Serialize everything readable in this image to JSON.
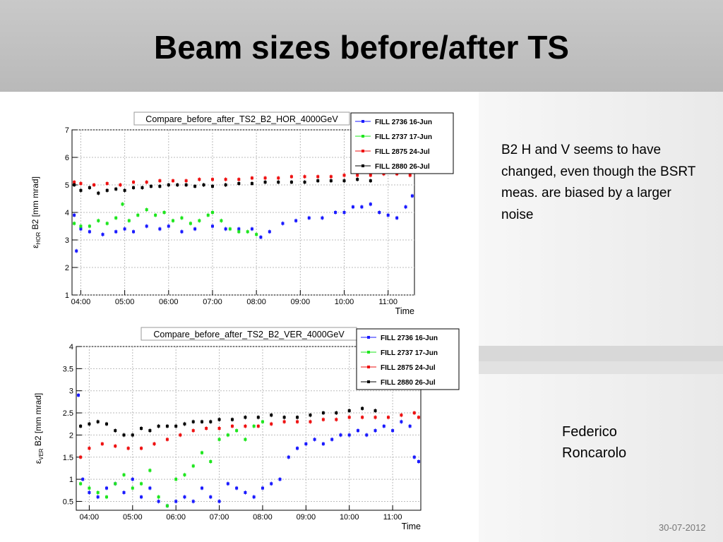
{
  "slide": {
    "title": "Beam sizes before/after TS",
    "note": "B2 H and V seems to have changed, even though the BSRT meas. are biased by a larger noise",
    "author_line1": "Federico",
    "author_line2": "Roncarolo",
    "date": "30-07-2012"
  },
  "colors": {
    "fill_2736": "#1a1aff",
    "fill_2737": "#1ee61e",
    "fill_2875": "#ee1111",
    "fill_2880": "#000000"
  },
  "chart_data": [
    {
      "type": "scatter",
      "title": "Compare_before_after_TS2_B2_HOR_4000GeV",
      "ylabel_main": "ε",
      "ylabel_sub": "HOR",
      "ylabel_rest": " B2 [mm mrad]",
      "xlabel": "Time",
      "xticks": [
        "04:00",
        "05:00",
        "06:00",
        "07:00",
        "08:00",
        "09:00",
        "10:00",
        "11:00"
      ],
      "yticks": [
        "1",
        "2",
        "3",
        "4",
        "5",
        "6",
        "7"
      ],
      "xlim_hours": [
        3.8,
        11.6
      ],
      "ylim": [
        1,
        7
      ],
      "legend_position": "top-right",
      "legend": [
        "FILL 2736 16-Jun",
        "FILL 2737 17-Jun",
        "FILL 2875 24-Jul",
        "FILL 2880 26-Jul"
      ],
      "series": [
        {
          "name": "FILL 2736 16-Jun",
          "color": "#1a1aff",
          "x": [
            3.85,
            3.9,
            4.0,
            4.2,
            4.5,
            4.8,
            5.0,
            5.2,
            5.5,
            5.8,
            6.0,
            6.3,
            6.6,
            7.0,
            7.3,
            7.6,
            7.9,
            8.1,
            8.3,
            8.6,
            8.9,
            9.2,
            9.5,
            9.8,
            10.0,
            10.2,
            10.4,
            10.6,
            10.8,
            11.0,
            11.2,
            11.4,
            11.55
          ],
          "y": [
            3.9,
            2.6,
            3.4,
            3.3,
            3.2,
            3.3,
            3.4,
            3.3,
            3.5,
            3.4,
            3.5,
            3.3,
            3.4,
            3.5,
            3.4,
            3.4,
            3.4,
            3.1,
            3.3,
            3.6,
            3.7,
            3.8,
            3.8,
            4.0,
            4.0,
            4.2,
            4.2,
            4.3,
            4.0,
            3.9,
            3.8,
            4.2,
            4.6
          ]
        },
        {
          "name": "FILL 2737 17-Jun",
          "color": "#1ee61e",
          "x": [
            3.85,
            4.0,
            4.2,
            4.4,
            4.6,
            4.8,
            4.95,
            5.1,
            5.3,
            5.5,
            5.7,
            5.9,
            6.1,
            6.3,
            6.5,
            6.7,
            6.9,
            7.0,
            7.2,
            7.4,
            7.6,
            7.8,
            8.0
          ],
          "y": [
            3.6,
            3.5,
            3.5,
            3.7,
            3.6,
            3.8,
            4.3,
            3.7,
            3.9,
            4.1,
            3.9,
            4.0,
            3.7,
            3.8,
            3.6,
            3.7,
            3.9,
            4.0,
            3.7,
            3.4,
            3.3,
            3.3,
            3.2
          ]
        },
        {
          "name": "FILL 2875 24-Jul",
          "color": "#ee1111",
          "x": [
            3.85,
            4.0,
            4.3,
            4.6,
            4.9,
            5.2,
            5.5,
            5.8,
            6.1,
            6.4,
            6.7,
            7.0,
            7.3,
            7.6,
            7.9,
            8.2,
            8.5,
            8.8,
            9.1,
            9.4,
            9.7,
            10.0,
            10.3,
            10.6,
            10.9,
            11.2,
            11.5
          ],
          "y": [
            5.1,
            5.05,
            5.0,
            5.05,
            5.0,
            5.1,
            5.1,
            5.15,
            5.15,
            5.15,
            5.2,
            5.2,
            5.2,
            5.2,
            5.25,
            5.25,
            5.25,
            5.3,
            5.3,
            5.3,
            5.3,
            5.35,
            5.35,
            5.35,
            5.4,
            5.4,
            5.35
          ]
        },
        {
          "name": "FILL 2880 26-Jul",
          "color": "#000000",
          "x": [
            3.85,
            4.0,
            4.2,
            4.4,
            4.6,
            4.8,
            5.0,
            5.2,
            5.4,
            5.6,
            5.8,
            6.0,
            6.2,
            6.4,
            6.6,
            6.8,
            7.0,
            7.3,
            7.6,
            7.9,
            8.2,
            8.5,
            8.8,
            9.1,
            9.4,
            9.7,
            10.0,
            10.3,
            10.6
          ],
          "y": [
            5.0,
            4.8,
            4.9,
            4.7,
            4.8,
            4.85,
            4.8,
            4.9,
            4.9,
            4.95,
            4.95,
            5.0,
            5.0,
            5.0,
            4.95,
            5.0,
            4.95,
            5.0,
            5.05,
            5.05,
            5.1,
            5.1,
            5.1,
            5.1,
            5.15,
            5.15,
            5.15,
            5.2,
            5.15
          ]
        }
      ]
    },
    {
      "type": "scatter",
      "title": "Compare_before_after_TS2_B2_VER_4000GeV",
      "ylabel_main": "ε",
      "ylabel_sub": "VER",
      "ylabel_rest": " B2 [mm mrad]",
      "xlabel": "Time",
      "xticks": [
        "04:00",
        "05:00",
        "06:00",
        "07:00",
        "08:00",
        "09:00",
        "10:00",
        "11:00"
      ],
      "yticks": [
        "0.5",
        "1",
        "1.5",
        "2",
        "2.5",
        "3",
        "3.5",
        "4"
      ],
      "xlim_hours": [
        3.7,
        11.65
      ],
      "ylim": [
        0.3,
        4
      ],
      "legend_position": "top-right",
      "legend": [
        "FILL 2736 16-Jun",
        "FILL 2737 17-Jun",
        "FILL 2875 24-Jul",
        "FILL 2880 26-Jul"
      ],
      "series": [
        {
          "name": "FILL 2736 16-Jun",
          "color": "#1a1aff",
          "x": [
            3.75,
            3.85,
            4.0,
            4.2,
            4.4,
            4.6,
            4.8,
            5.0,
            5.2,
            5.4,
            5.6,
            5.8,
            6.0,
            6.2,
            6.4,
            6.6,
            6.8,
            7.0,
            7.2,
            7.4,
            7.6,
            7.8,
            8.0,
            8.2,
            8.4,
            8.6,
            8.8,
            9.0,
            9.2,
            9.4,
            9.6,
            9.8,
            10.0,
            10.2,
            10.4,
            10.6,
            10.8,
            11.0,
            11.2,
            11.4,
            11.5,
            11.6
          ],
          "y": [
            2.9,
            1.0,
            0.7,
            0.6,
            0.8,
            0.9,
            0.7,
            1.0,
            0.6,
            0.8,
            0.5,
            0.4,
            0.5,
            0.6,
            0.5,
            0.8,
            0.6,
            0.5,
            0.9,
            0.8,
            0.7,
            0.6,
            0.8,
            0.9,
            1.0,
            1.5,
            1.7,
            1.8,
            1.9,
            1.8,
            1.9,
            2.0,
            2.0,
            2.1,
            2.0,
            2.1,
            2.2,
            2.1,
            2.3,
            2.2,
            1.5,
            1.4
          ]
        },
        {
          "name": "FILL 2737 17-Jun",
          "color": "#1ee61e",
          "x": [
            3.8,
            4.0,
            4.2,
            4.4,
            4.6,
            4.8,
            5.0,
            5.2,
            5.4,
            5.6,
            5.8,
            6.0,
            6.2,
            6.4,
            6.6,
            6.8,
            7.0,
            7.2,
            7.4,
            7.6,
            7.8,
            8.0
          ],
          "y": [
            0.9,
            0.8,
            0.7,
            0.6,
            0.9,
            1.1,
            0.8,
            0.9,
            1.2,
            0.6,
            0.4,
            1.0,
            1.1,
            1.3,
            1.6,
            1.4,
            1.9,
            2.0,
            2.1,
            1.9,
            2.2,
            2.3
          ]
        },
        {
          "name": "FILL 2875 24-Jul",
          "color": "#ee1111",
          "x": [
            3.8,
            4.0,
            4.3,
            4.6,
            4.9,
            5.2,
            5.5,
            5.8,
            6.1,
            6.4,
            6.7,
            7.0,
            7.3,
            7.6,
            7.9,
            8.2,
            8.5,
            8.8,
            9.1,
            9.4,
            9.7,
            10.0,
            10.3,
            10.6,
            10.9,
            11.2,
            11.5,
            11.6
          ],
          "y": [
            1.5,
            1.7,
            1.8,
            1.75,
            1.7,
            1.7,
            1.8,
            1.9,
            2.0,
            2.1,
            2.15,
            2.15,
            2.2,
            2.2,
            2.2,
            2.25,
            2.3,
            2.3,
            2.3,
            2.35,
            2.35,
            2.4,
            2.4,
            2.4,
            2.4,
            2.45,
            2.5,
            2.4
          ]
        },
        {
          "name": "FILL 2880 26-Jul",
          "color": "#000000",
          "x": [
            3.8,
            4.0,
            4.2,
            4.4,
            4.6,
            4.8,
            5.0,
            5.2,
            5.4,
            5.6,
            5.8,
            6.0,
            6.2,
            6.4,
            6.6,
            6.8,
            7.0,
            7.3,
            7.6,
            7.9,
            8.2,
            8.5,
            8.8,
            9.1,
            9.4,
            9.7,
            10.0,
            10.3,
            10.6
          ],
          "y": [
            2.2,
            2.25,
            2.3,
            2.25,
            2.1,
            2.0,
            2.0,
            2.15,
            2.1,
            2.2,
            2.2,
            2.2,
            2.25,
            2.3,
            2.3,
            2.3,
            2.35,
            2.35,
            2.4,
            2.4,
            2.45,
            2.4,
            2.4,
            2.45,
            2.5,
            2.5,
            2.55,
            2.6,
            2.55
          ]
        }
      ]
    }
  ]
}
